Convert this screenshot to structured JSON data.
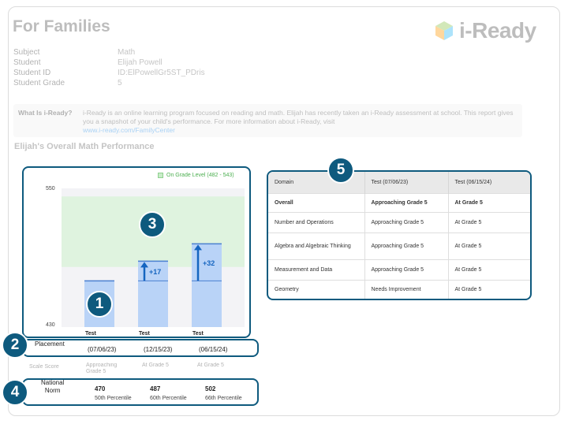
{
  "header": {
    "title": "For Families",
    "logo_text": "i-Ready"
  },
  "student_info": [
    {
      "label": "Subject",
      "value": "Math"
    },
    {
      "label": "Student",
      "value": "Elijah Powell"
    },
    {
      "label": "Student ID",
      "value": "ID:ElPowellGr5ST_PDris"
    },
    {
      "label": "Student Grade",
      "value": "5"
    }
  ],
  "about": {
    "label": "What Is i-Ready?",
    "text": "i-Ready is an online learning program focused on reading and math. Elijah has recently taken an i-Ready assessment at school. This report gives you a snapshot of your child's performance. For more information about i-Ready, visit",
    "link": "www.i-ready.com/FamilyCenter"
  },
  "section_title": "Elijah's Overall Math Performance",
  "chart_data": {
    "type": "bar",
    "legend": "On Grade Level (482 - 543)",
    "y_ticks": [
      "550",
      "430"
    ],
    "ylim": [
      430,
      550
    ],
    "on_grade_band": [
      482,
      543
    ],
    "categories": [
      "Test",
      "Test",
      "Test"
    ],
    "values": [
      470,
      487,
      502
    ],
    "growth_labels": [
      "",
      "+17",
      "+32"
    ],
    "colors": {
      "bar": "#b9d3f7",
      "band": "#dff3df",
      "bar_top": "#4a7fd0",
      "arrow": "#1565c0"
    }
  },
  "placement": {
    "label": "Placement",
    "dates": [
      "(07/06/23)",
      "(12/15/23)",
      "(06/15/24)"
    ],
    "scale_score_label": "Scale Score",
    "levels": [
      "Approaching Grade 5",
      "At Grade 5",
      "At Grade 5"
    ]
  },
  "norm": {
    "label_line1": "National",
    "label_line2": "Norm",
    "scores": [
      "470",
      "487",
      "502"
    ],
    "percentiles": [
      "50th Percentile",
      "60th Percentile",
      "66th Percentile"
    ]
  },
  "domain_table": {
    "headers": [
      "Domain",
      "Test (07/06/23)",
      "Test (06/15/24)"
    ],
    "rows": [
      {
        "domain": "Overall",
        "t1": "Approaching Grade 5",
        "t2": "At Grade 5"
      },
      {
        "domain": "Number and Operations",
        "t1": "Approaching Grade 5",
        "t2": "At Grade 5"
      },
      {
        "domain": "Algebra and Algebraic Thinking",
        "t1": "Approaching Grade 5",
        "t2": "At Grade 5"
      },
      {
        "domain": "Measurement and Data",
        "t1": "Approaching Grade 5",
        "t2": "At Grade 5"
      },
      {
        "domain": "Geometry",
        "t1": "Needs Improvement",
        "t2": "At Grade 5"
      }
    ]
  },
  "badges": [
    "1",
    "2",
    "3",
    "4",
    "5"
  ]
}
